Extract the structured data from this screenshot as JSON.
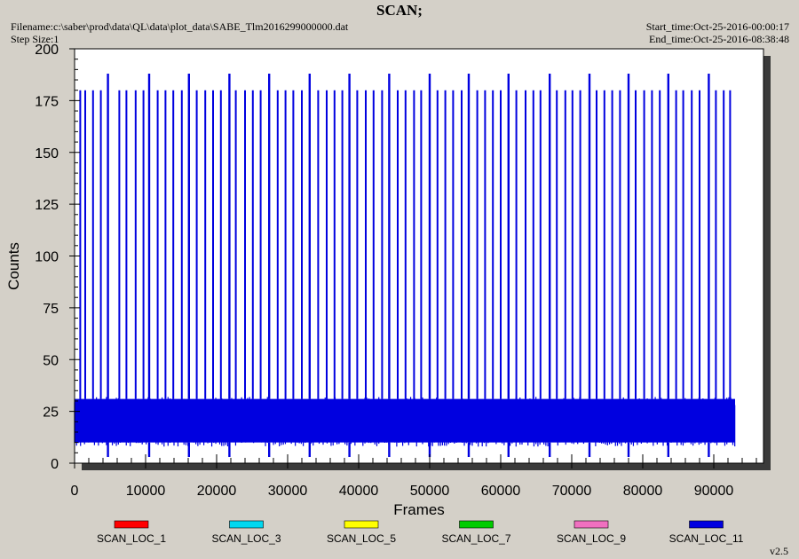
{
  "window": {
    "title": "SCAN;",
    "filename_label": "Filename:c:\\saber\\prod\\data\\QL\\data\\plot_data\\SABE_Tlm2016299000000.dat",
    "step_size_label": "Step Size:1",
    "start_time_label": "Start_time:Oct-25-2016-00:00:17",
    "end_time_label": "End_time:Oct-25-2016-08:38:48",
    "version": "v2.5"
  },
  "chart_data": {
    "type": "line",
    "title": "SCAN;",
    "xlabel": "Frames",
    "ylabel": "Counts",
    "xlim": [
      0,
      97000
    ],
    "ylim": [
      0,
      200
    ],
    "x_ticks": [
      0,
      10000,
      20000,
      30000,
      40000,
      50000,
      60000,
      70000,
      80000,
      90000
    ],
    "y_ticks": [
      0,
      25,
      50,
      75,
      100,
      125,
      150,
      175,
      200
    ],
    "grid": false,
    "legend_position": "bottom",
    "series": [
      {
        "name": "SCAN_LOC_1",
        "color": "#ff0000",
        "values": []
      },
      {
        "name": "SCAN_LOC_3",
        "color": "#00d8f0",
        "values": []
      },
      {
        "name": "SCAN_LOC_5",
        "color": "#ffff00",
        "values": []
      },
      {
        "name": "SCAN_LOC_7",
        "color": "#00cc00",
        "values": []
      },
      {
        "name": "SCAN_LOC_9",
        "color": "#f070c0",
        "values": []
      },
      {
        "name": "SCAN_LOC_11",
        "color": "#0000e0",
        "description_values": {
          "baseline_band": [
            10,
            31
          ],
          "spike_peak_high": 188,
          "spike_peak_low": 180,
          "dip_min": 3,
          "x_end": 93000
        },
        "spikes_x": [
          800,
          1500,
          2600,
          3700,
          4700,
          6300,
          7300,
          8600,
          9700,
          10500,
          11700,
          12800,
          13900,
          15100,
          16100,
          17200,
          18400,
          19500,
          20600,
          21800,
          22700,
          24000,
          25100,
          26200,
          27400,
          28600,
          29700,
          30800,
          32000,
          33100,
          34300,
          35500,
          36600,
          37700,
          38700,
          39800,
          41000,
          42100,
          43300,
          44300,
          45500,
          46600,
          47800,
          48800,
          50000,
          51100,
          52200,
          53300,
          54500,
          55500,
          56700,
          57800,
          58900,
          60000,
          61100,
          62200,
          63500,
          64600,
          65600,
          66900,
          67900,
          69100,
          70100,
          71200,
          72500,
          73500,
          74600,
          75700,
          76800,
          78000,
          79000,
          80200,
          81300,
          82400,
          83600,
          84700,
          85700,
          86900,
          88000,
          89300,
          90300,
          91400,
          92300
        ],
        "spikes_high_x": [
          4700,
          10500,
          16100,
          21800,
          27400,
          33100,
          38700,
          44300,
          50000,
          55500,
          61100,
          66900,
          72500,
          78000,
          83600,
          89300
        ]
      }
    ]
  }
}
